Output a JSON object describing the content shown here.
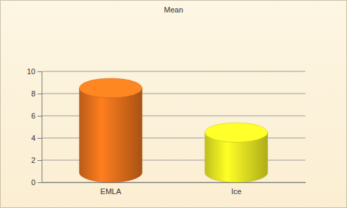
{
  "chart_data": {
    "type": "bar",
    "title": "Mean",
    "categories": [
      "EMLA",
      "Ice"
    ],
    "values": [
      8.5,
      4.5
    ],
    "colors": [
      "#e8711c",
      "#eeee22"
    ],
    "ylim": [
      0,
      10
    ],
    "yticks": [
      0,
      2,
      4,
      6,
      8,
      10
    ],
    "grid": true
  }
}
